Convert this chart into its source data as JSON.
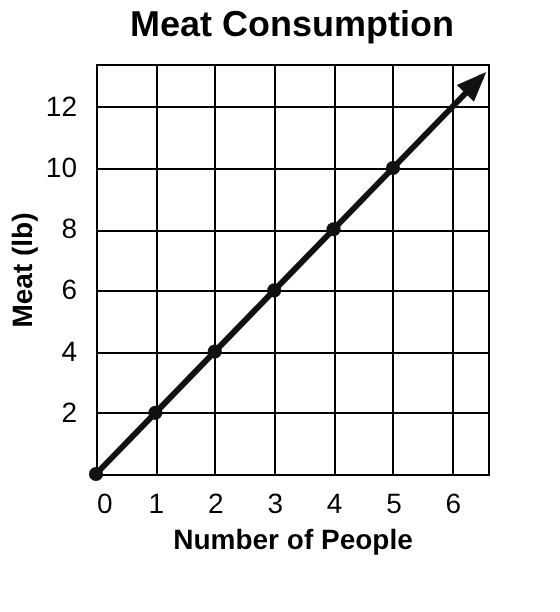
{
  "chart_data": {
    "type": "line",
    "title": "Meat Consumption",
    "xlabel": "Number of People",
    "ylabel": "Meat (lb)",
    "x": [
      0,
      1,
      2,
      3,
      4,
      5,
      6.5
    ],
    "series": [
      {
        "color": "#111111",
        "values": [
          0,
          2,
          4,
          6,
          8,
          10,
          13
        ]
      }
    ],
    "xlim": [
      0,
      6.6
    ],
    "ylim": [
      0,
      13.4
    ],
    "xticks": [
      0,
      1,
      2,
      3,
      4,
      5,
      6
    ],
    "yticks": [
      {
        "value": 0,
        "label": null
      },
      2,
      4,
      6,
      8,
      10,
      12
    ],
    "grid": true,
    "marker": "circle",
    "line_style": "solid"
  }
}
